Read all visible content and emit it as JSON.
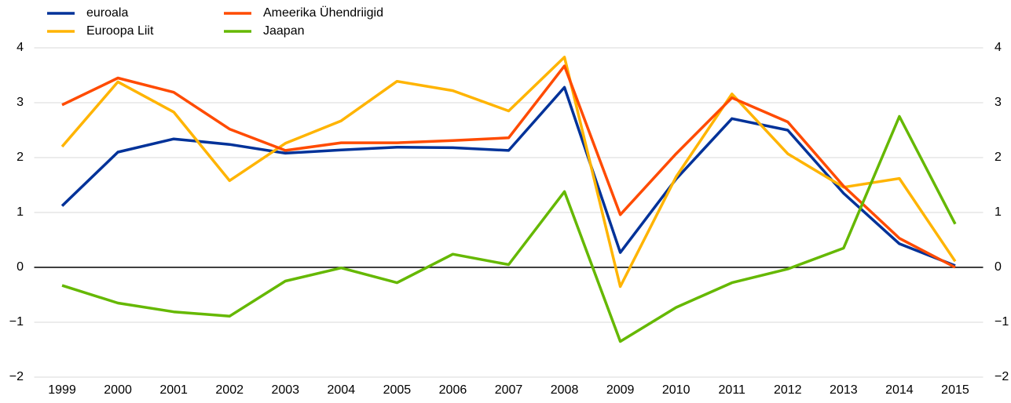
{
  "chart_data": {
    "type": "line",
    "categories": [
      "1999",
      "2000",
      "2001",
      "2002",
      "2003",
      "2004",
      "2005",
      "2006",
      "2007",
      "2008",
      "2009",
      "2010",
      "2011",
      "2012",
      "2013",
      "2014",
      "2015"
    ],
    "series": [
      {
        "name": "euroala",
        "color": "#003299",
        "values": [
          1.12,
          2.1,
          2.34,
          2.24,
          2.08,
          2.14,
          2.19,
          2.18,
          2.13,
          3.28,
          0.27,
          1.61,
          2.71,
          2.5,
          1.35,
          0.43,
          0.03
        ]
      },
      {
        "name": "Euroopa Liit",
        "color": "#ffb400",
        "values": [
          2.2,
          3.38,
          2.83,
          1.58,
          2.26,
          2.67,
          3.39,
          3.22,
          2.85,
          3.83,
          -0.35,
          1.65,
          3.16,
          2.07,
          1.46,
          1.62,
          0.11
        ]
      },
      {
        "name": "Ameerika Ühendriigid",
        "color": "#ff4b00",
        "values": [
          2.96,
          3.45,
          3.19,
          2.52,
          2.13,
          2.27,
          2.27,
          2.31,
          2.36,
          3.67,
          0.96,
          2.07,
          3.09,
          2.65,
          1.48,
          0.53,
          0.0
        ]
      },
      {
        "name": "Jaapan",
        "color": "#65b800",
        "values": [
          -0.33,
          -0.65,
          -0.81,
          -0.89,
          -0.25,
          -0.01,
          -0.28,
          0.24,
          0.05,
          1.38,
          -1.35,
          -0.73,
          -0.28,
          -0.03,
          0.35,
          2.75,
          0.79
        ]
      }
    ],
    "ylim": [
      -2,
      4
    ],
    "yticks": [
      {
        "value": -2,
        "label": "−2"
      },
      {
        "value": -1,
        "label": "−1"
      },
      0,
      1,
      2,
      3,
      4
    ],
    "y2lim": [
      -2,
      4
    ],
    "y2ticks": [
      {
        "value": -2,
        "label": "−2"
      },
      {
        "value": -1,
        "label": "−1"
      },
      0,
      1,
      2,
      3,
      4
    ],
    "grid": true,
    "legend": "top-left"
  }
}
